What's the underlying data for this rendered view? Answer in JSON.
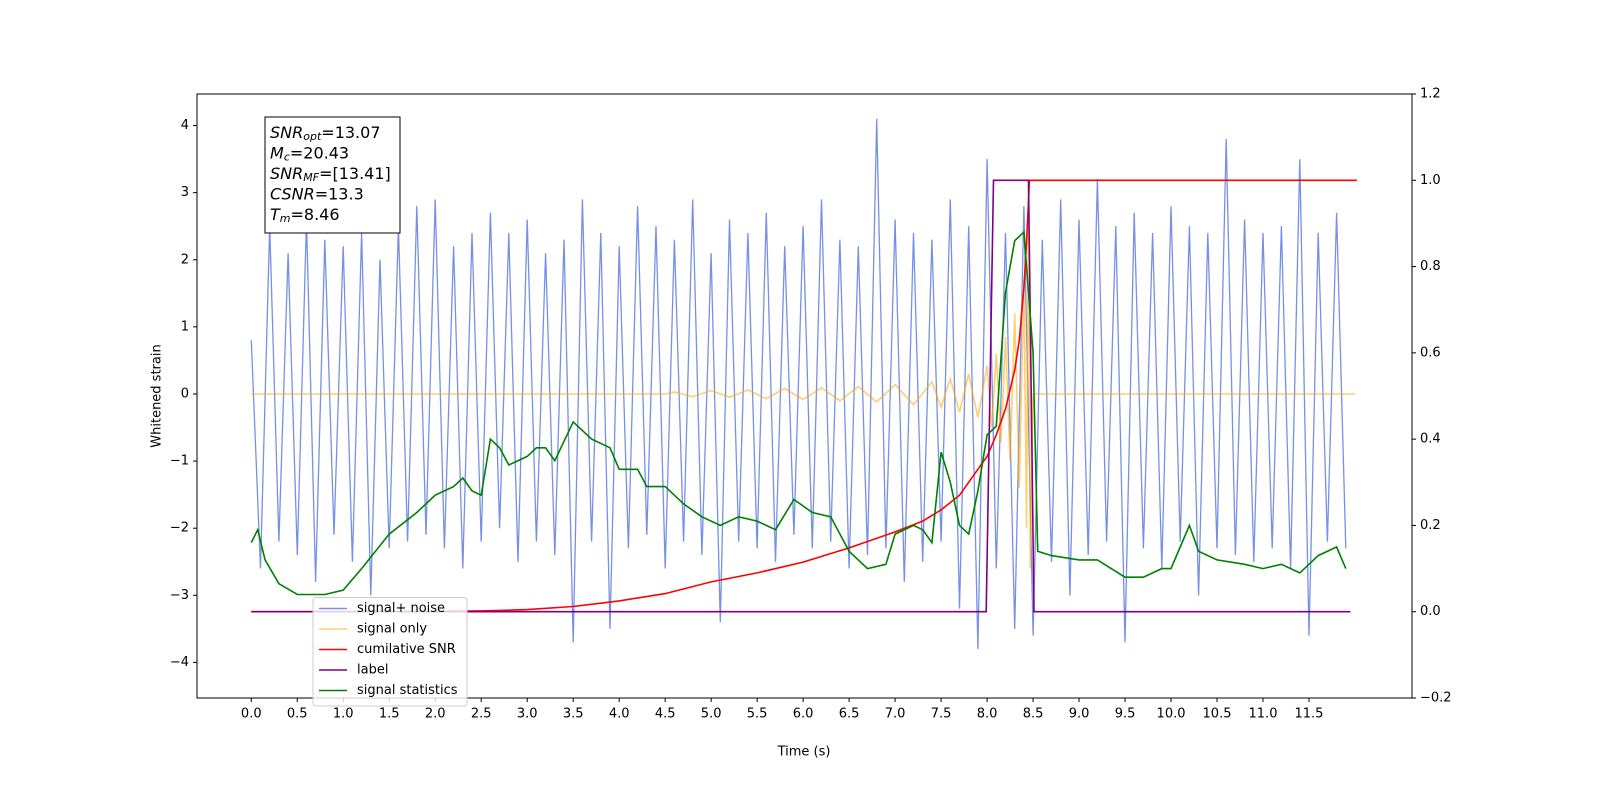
{
  "chart_data": {
    "type": "line",
    "xlabel": "Time (s)",
    "ylabel": "Whitened strain",
    "xlim": [
      -0.59,
      12.62
    ],
    "ylim": [
      -4.53,
      4.47
    ],
    "y2lim": [
      -0.2,
      1.2
    ],
    "xticks": [
      {
        "value": 0,
        "label": "0.0"
      },
      0.5,
      {
        "value": 1,
        "label": "1.0"
      },
      1.5,
      {
        "value": 2,
        "label": "2.0"
      },
      2.5,
      {
        "value": 3,
        "label": "3.0"
      },
      3.5,
      {
        "value": 4,
        "label": "4.0"
      },
      4.5,
      {
        "value": 5,
        "label": "5.0"
      },
      5.5,
      {
        "value": 6,
        "label": "6.0"
      },
      6.5,
      {
        "value": 7,
        "label": "7.0"
      },
      7.5,
      {
        "value": 8,
        "label": "8.0"
      },
      8.5,
      {
        "value": 9,
        "label": "9.0"
      },
      9.5,
      {
        "value": 10,
        "label": "10.0"
      },
      10.5,
      {
        "value": 11,
        "label": "11.0"
      },
      11.5
    ],
    "yticks": [
      {
        "value": -4,
        "label": "−4"
      },
      {
        "value": -3,
        "label": "−3"
      },
      {
        "value": -2,
        "label": "−2"
      },
      {
        "value": -1,
        "label": "−1"
      },
      0,
      1,
      2,
      3,
      4
    ],
    "y2ticks": [
      {
        "value": -0.2,
        "label": "−0.2"
      },
      {
        "value": 0,
        "label": "0.0"
      },
      0.2,
      0.4,
      0.6,
      0.8,
      {
        "value": 1,
        "label": "1.0"
      },
      1.2
    ],
    "legend": "lower left",
    "series": [
      {
        "name": "signal+ noise",
        "color": "#7590e6",
        "x": [
          0.0,
          0.1,
          0.2,
          0.3,
          0.4,
          0.5,
          0.6,
          0.7,
          0.8,
          0.9,
          1.0,
          1.1,
          1.2,
          1.3,
          1.4,
          1.5,
          1.6,
          1.7,
          1.8,
          1.9,
          2.0,
          2.1,
          2.2,
          2.3,
          2.4,
          2.5,
          2.6,
          2.7,
          2.8,
          2.9,
          3.0,
          3.1,
          3.2,
          3.3,
          3.4,
          3.5,
          3.6,
          3.7,
          3.8,
          3.9,
          4.0,
          4.1,
          4.2,
          4.3,
          4.4,
          4.5,
          4.6,
          4.7,
          4.8,
          4.9,
          5.0,
          5.1,
          5.2,
          5.3,
          5.4,
          5.5,
          5.6,
          5.7,
          5.8,
          5.9,
          6.0,
          6.1,
          6.2,
          6.3,
          6.4,
          6.5,
          6.6,
          6.7,
          6.8,
          6.9,
          7.0,
          7.1,
          7.2,
          7.3,
          7.4,
          7.5,
          7.6,
          7.7,
          7.8,
          7.9,
          8.0,
          8.1,
          8.2,
          8.3,
          8.4,
          8.5,
          8.6,
          8.7,
          8.8,
          8.9,
          9.0,
          9.1,
          9.2,
          9.3,
          9.4,
          9.5,
          9.6,
          9.7,
          9.8,
          9.9,
          10.0,
          10.1,
          10.2,
          10.3,
          10.4,
          10.5,
          10.6,
          10.7,
          10.8,
          10.9,
          11.0,
          11.1,
          11.2,
          11.3,
          11.4,
          11.5,
          11.6,
          11.7,
          11.8,
          11.9
        ],
        "values": [
          0.8,
          -2.6,
          2.5,
          -2.2,
          2.1,
          -2.4,
          2.6,
          -2.8,
          2.3,
          -2.1,
          2.2,
          -2.5,
          2.4,
          -3.0,
          2.0,
          -2.3,
          2.5,
          -2.2,
          2.8,
          -2.1,
          2.9,
          -2.3,
          2.2,
          -2.6,
          2.4,
          -2.2,
          2.7,
          -2.0,
          2.4,
          -2.5,
          2.6,
          -2.2,
          2.1,
          -2.4,
          2.3,
          -3.7,
          2.9,
          -2.2,
          2.4,
          -3.5,
          2.2,
          -2.3,
          2.8,
          -2.1,
          2.5,
          -2.6,
          2.3,
          -2.2,
          2.9,
          -2.4,
          2.1,
          -3.4,
          2.6,
          -2.2,
          2.4,
          -2.3,
          2.7,
          -2.5,
          2.2,
          -2.1,
          2.5,
          -2.3,
          2.9,
          -2.2,
          2.3,
          -2.6,
          2.2,
          -2.4,
          4.1,
          -2.3,
          2.6,
          -2.8,
          2.4,
          -2.5,
          2.3,
          -2.2,
          2.9,
          -3.2,
          2.5,
          -3.8,
          3.5,
          -2.6,
          2.4,
          -3.5,
          2.8,
          -3.6,
          2.3,
          -2.5,
          2.9,
          -3.0,
          2.6,
          -2.4,
          3.2,
          -2.2,
          2.5,
          -3.7,
          2.7,
          -2.3,
          2.4,
          -2.6,
          2.8,
          -2.2,
          2.5,
          -3.0,
          2.4,
          -2.3,
          3.8,
          -2.4,
          2.6,
          -2.5,
          2.4,
          -2.3,
          2.5,
          -2.6,
          3.5,
          -3.6,
          2.4,
          -2.2,
          2.7,
          -2.3
        ]
      },
      {
        "name": "signal only",
        "color": "#ffa500",
        "x": [
          0,
          4.5,
          4.6,
          4.8,
          5.0,
          5.2,
          5.4,
          5.6,
          5.8,
          6.0,
          6.2,
          6.4,
          6.6,
          6.8,
          7.0,
          7.2,
          7.4,
          7.5,
          7.6,
          7.7,
          7.8,
          7.9,
          8.0,
          8.05,
          8.1,
          8.15,
          8.2,
          8.25,
          8.3,
          8.35,
          8.4,
          8.43,
          8.45,
          8.47,
          8.5,
          12.0
        ],
        "values": [
          0,
          0,
          0.03,
          -0.04,
          0.05,
          -0.05,
          0.06,
          -0.07,
          0.08,
          -0.08,
          0.09,
          -0.1,
          0.11,
          -0.12,
          0.14,
          -0.16,
          0.18,
          -0.2,
          0.23,
          -0.27,
          0.3,
          -0.35,
          0.42,
          -0.5,
          0.6,
          -0.72,
          0.85,
          -1.0,
          1.2,
          -1.4,
          1.7,
          -2.0,
          3.2,
          -2.6,
          0,
          0
        ]
      },
      {
        "name": "cumilative SNR",
        "color": "#ff0000",
        "axis": "y2",
        "x": [
          0,
          1.5,
          2.5,
          3.0,
          3.5,
          4.0,
          4.5,
          5.0,
          5.5,
          6.0,
          6.5,
          7.0,
          7.3,
          7.5,
          7.7,
          7.9,
          8.0,
          8.1,
          8.2,
          8.3,
          8.35,
          8.4,
          8.43,
          8.45,
          8.46,
          12.02
        ],
        "values": [
          0,
          0,
          0.002,
          0.005,
          0.012,
          0.025,
          0.042,
          0.069,
          0.09,
          0.115,
          0.148,
          0.185,
          0.21,
          0.236,
          0.27,
          0.33,
          0.36,
          0.41,
          0.47,
          0.56,
          0.63,
          0.75,
          0.86,
          0.95,
          1.0,
          1.0
        ]
      },
      {
        "name": "label",
        "color": "#800080",
        "axis": "y2",
        "x": [
          0,
          7.99,
          8.07,
          8.45,
          8.51,
          11.95
        ],
        "values": [
          0,
          0,
          1,
          1,
          0,
          0
        ]
      },
      {
        "name": "signal statistics",
        "color": "#008000",
        "axis": "y2",
        "x": [
          0.0,
          0.07,
          0.15,
          0.3,
          0.5,
          0.8,
          1.0,
          1.2,
          1.5,
          1.8,
          2.0,
          2.2,
          2.3,
          2.4,
          2.5,
          2.6,
          2.7,
          2.8,
          3.0,
          3.1,
          3.2,
          3.3,
          3.5,
          3.7,
          3.9,
          4.0,
          4.2,
          4.3,
          4.5,
          4.7,
          4.9,
          5.1,
          5.3,
          5.5,
          5.7,
          5.9,
          6.1,
          6.3,
          6.5,
          6.7,
          6.9,
          7.0,
          7.2,
          7.3,
          7.4,
          7.5,
          7.6,
          7.7,
          7.8,
          7.9,
          8.0,
          8.1,
          8.2,
          8.3,
          8.4,
          8.5,
          8.55,
          8.7,
          9.0,
          9.2,
          9.5,
          9.7,
          9.9,
          10.0,
          10.1,
          10.2,
          10.3,
          10.5,
          10.8,
          11.0,
          11.2,
          11.4,
          11.5,
          11.6,
          11.8,
          11.9
        ],
        "values": [
          0.16,
          0.19,
          0.12,
          0.065,
          0.04,
          0.04,
          0.05,
          0.1,
          0.18,
          0.23,
          0.27,
          0.29,
          0.31,
          0.28,
          0.27,
          0.4,
          0.38,
          0.34,
          0.36,
          0.38,
          0.38,
          0.35,
          0.44,
          0.4,
          0.38,
          0.33,
          0.33,
          0.29,
          0.29,
          0.25,
          0.22,
          0.2,
          0.22,
          0.21,
          0.19,
          0.26,
          0.23,
          0.22,
          0.14,
          0.1,
          0.11,
          0.18,
          0.2,
          0.19,
          0.16,
          0.37,
          0.3,
          0.2,
          0.18,
          0.28,
          0.41,
          0.43,
          0.74,
          0.86,
          0.88,
          0.6,
          0.14,
          0.13,
          0.12,
          0.12,
          0.08,
          0.08,
          0.1,
          0.1,
          0.15,
          0.2,
          0.14,
          0.12,
          0.11,
          0.1,
          0.11,
          0.09,
          0.11,
          0.13,
          0.15,
          0.1
        ]
      }
    ],
    "annotation": {
      "lines": [
        {
          "symbol": "SNR",
          "sub": "opt",
          "text": "=13.07"
        },
        {
          "symbol": "M",
          "sub": "c",
          "text": "=20.43"
        },
        {
          "symbol": "SNR",
          "sub": "MF",
          "text": "=[13.41]"
        },
        {
          "symbol": "CSNR",
          "text": "=13.3"
        },
        {
          "symbol": "T",
          "sub": "m",
          "text": "=8.46"
        }
      ]
    }
  }
}
